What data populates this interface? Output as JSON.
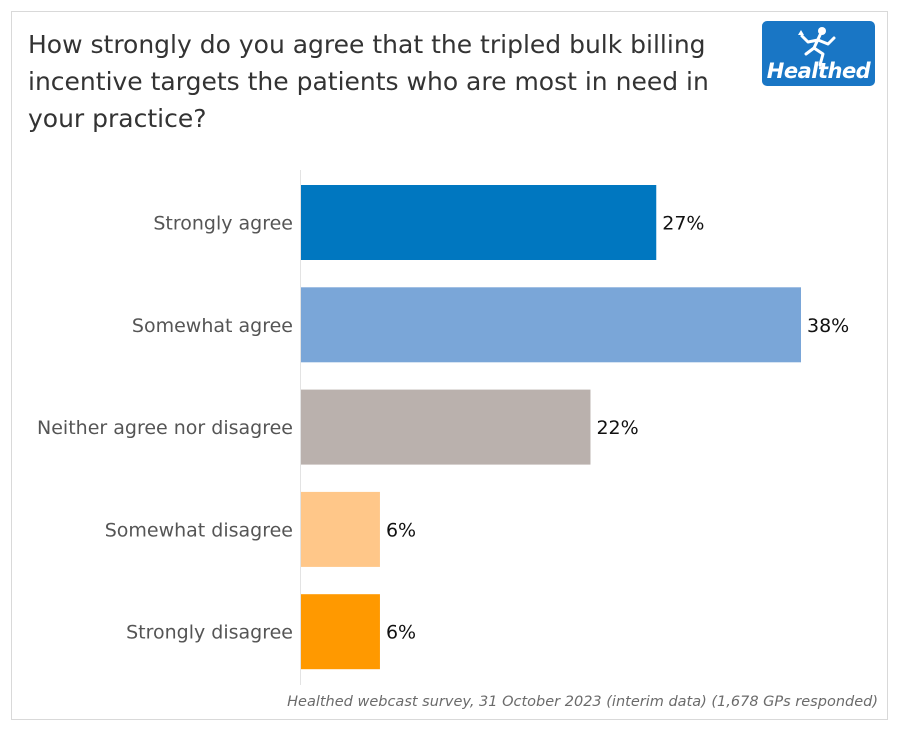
{
  "title": "How strongly do you agree that the tripled bulk billing incentive targets the patients who are most in need in your practice?",
  "logo": {
    "text": "Healthed",
    "icon": "running-figure-icon",
    "color": "#1976c5"
  },
  "footer": "Healthed webcast survey, 31 October 2023 (interim data) (1,678 GPs responded)",
  "chart_data": {
    "type": "bar",
    "orientation": "horizontal",
    "categories": [
      "Strongly agree",
      "Somewhat agree",
      "Neither agree nor disagree",
      "Somewhat disagree",
      "Strongly disagree"
    ],
    "values": [
      27,
      38,
      22,
      6,
      6
    ],
    "value_labels": [
      "27%",
      "38%",
      "22%",
      "6%",
      "6%"
    ],
    "colors": [
      "#0077c0",
      "#7aa6d8",
      "#bab1ad",
      "#ffc789",
      "#ff9900"
    ],
    "xlim": [
      0,
      38
    ],
    "grid": false
  }
}
